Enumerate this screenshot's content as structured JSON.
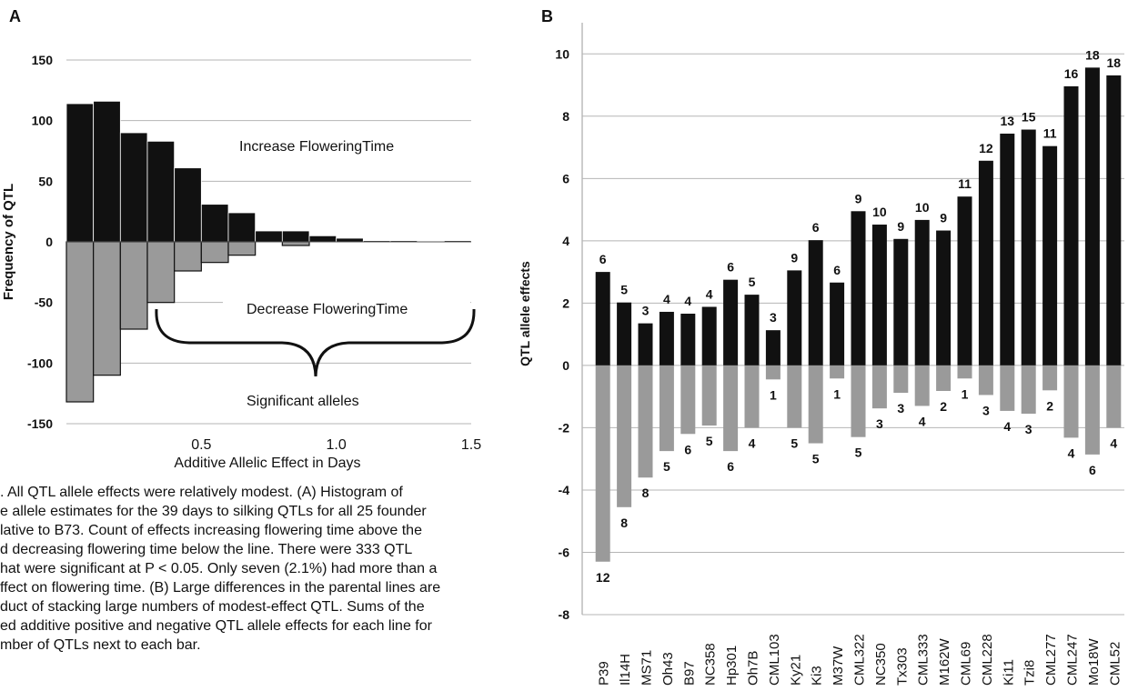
{
  "panel_a_letter": "A",
  "panel_b_letter": "B",
  "colors": {
    "increase_bar": "#111111",
    "decrease_bar": "#9a9a9a",
    "grid": "#b5b5b5",
    "text": "#111111"
  },
  "caption": {
    "lines": [
      ". All QTL allele effects were relatively modest. (A) Histogram of",
      "e allele estimates for the 39 days to silking QTLs for all 25 founder",
      "lative to B73. Count of effects increasing flowering time above the",
      "d decreasing flowering time below the line. There were 333 QTL",
      "hat were significant at P < 0.05. Only seven (2.1%) had more than a",
      "ffect on flowering time. (B) Large differences in the parental lines are",
      "duct of stacking large numbers of modest-effect QTL. Sums of the",
      "ed additive positive and negative QTL allele effects for each line for",
      "mber of QTLs next to each bar."
    ]
  },
  "chart_data": [
    {
      "type": "bar",
      "panel": "A",
      "xlabel": "Additive Allelic Effect in Days",
      "ylabel": "Frequency of QTL",
      "xlim": [
        0,
        1.5
      ],
      "ylim": [
        -150,
        150
      ],
      "x_ticks": [
        "0.5",
        "1.0",
        "1.5"
      ],
      "y_ticks": [
        "150",
        "100",
        "50",
        "0",
        "-50",
        "-100",
        "-150"
      ],
      "grid": true,
      "bin_width": 0.1,
      "bin_starts": [
        0.0,
        0.1,
        0.2,
        0.3,
        0.4,
        0.5,
        0.6,
        0.7,
        0.8,
        0.9,
        1.0,
        1.1,
        1.2,
        1.3,
        1.4
      ],
      "series": [
        {
          "values": [
            114,
            116,
            90,
            83,
            61,
            31,
            24,
            9,
            9,
            5,
            3,
            1,
            1,
            0,
            1
          ]
        },
        {
          "values": [
            -132,
            -110,
            -72,
            -50,
            -24,
            -17,
            -11,
            0,
            -3,
            0,
            0,
            0,
            0,
            0,
            0
          ]
        }
      ],
      "annotations": {
        "increase": "Increase   FloweringTime",
        "decrease": "Decrease   FloweringTime",
        "significant": "Significant  alleles"
      }
    },
    {
      "type": "bar",
      "panel": "B",
      "ylabel": "QTL allele effects",
      "ylim": [
        -8,
        11
      ],
      "y_ticks": [
        "10",
        "8",
        "6",
        "4",
        "2",
        "0",
        "-2",
        "-4",
        "-6",
        "-8"
      ],
      "grid": true,
      "categories": [
        "P39",
        "Il14H",
        "MS71",
        "Oh43",
        "B97",
        "NC358",
        "Hp301",
        "Oh7B",
        "CML103",
        "Ky21",
        "Ki3",
        "M37W",
        "CML322",
        "NC350",
        "Tx303",
        "CML333",
        "M162W",
        "CML69",
        "CML228",
        "Ki11",
        "Tzi8",
        "CML277",
        "CML247",
        "Mo18W",
        "CML52"
      ],
      "series": [
        {
          "values": [
            3.0,
            2.02,
            1.35,
            1.72,
            1.66,
            1.88,
            2.75,
            2.27,
            1.13,
            3.05,
            4.02,
            2.66,
            4.95,
            4.52,
            4.06,
            4.67,
            4.33,
            5.42,
            6.57,
            7.44,
            7.57,
            7.04,
            8.96,
            9.56,
            9.31
          ],
          "labels": [
            "6",
            "5",
            "3",
            "4",
            "4",
            "4",
            "6",
            "5",
            "3",
            "9",
            "6",
            "6",
            "9",
            "10",
            "9",
            "10",
            "9",
            "11",
            "12",
            "13",
            "15",
            "11",
            "16",
            "18",
            "18"
          ]
        },
        {
          "values": [
            -6.3,
            -4.55,
            -3.6,
            -2.75,
            -2.2,
            -1.93,
            -2.75,
            -2.0,
            -0.45,
            -2.0,
            -2.5,
            -0.42,
            -2.3,
            -1.38,
            -0.88,
            -1.3,
            -0.82,
            -0.42,
            -0.95,
            -1.46,
            -1.55,
            -0.8,
            -2.32,
            -2.86,
            -2.0
          ],
          "labels": [
            "12",
            "8",
            "8",
            "5",
            "6",
            "5",
            "6",
            "4",
            "1",
            "5",
            "5",
            "1",
            "5",
            "3",
            "3",
            "4",
            "2",
            "1",
            "3",
            "4",
            "3",
            "2",
            "4",
            "6",
            "4"
          ]
        }
      ]
    }
  ]
}
